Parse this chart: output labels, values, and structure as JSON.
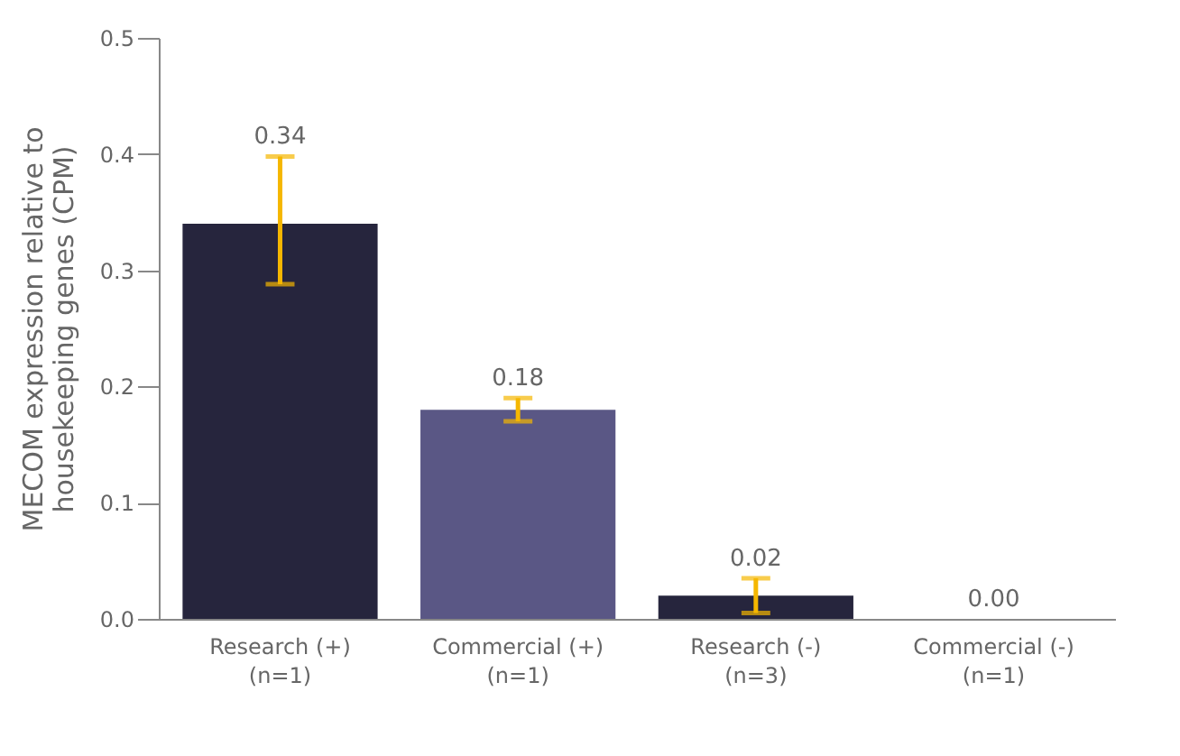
{
  "chart_data": {
    "type": "bar",
    "ylabel": "MECOM expression relative to housekeeping genes (CPM)",
    "categories": [
      "Research (+)\n(n=1)",
      "Commercial (+)\n(n=1)",
      "Research (-)\n(n=3)",
      "Commercial (-)\n(n=1)"
    ],
    "values": [
      0.34,
      0.18,
      0.02,
      0.0
    ],
    "colors": [
      "#26253d",
      "#5a5785",
      "#26253d",
      "#26253d"
    ],
    "errors": [
      [
        0.288,
        0.398
      ],
      [
        0.17,
        0.19
      ],
      [
        0.005,
        0.035
      ],
      null
    ],
    "value_labels": [
      "0.34",
      "0.18",
      "0.02",
      "0.00"
    ],
    "ylim": [
      0,
      0.5
    ],
    "yticks": [
      {
        "value": 0,
        "label": "0.0"
      },
      0.1,
      0.2,
      0.3,
      0.4,
      0.5
    ],
    "grid": false
  }
}
